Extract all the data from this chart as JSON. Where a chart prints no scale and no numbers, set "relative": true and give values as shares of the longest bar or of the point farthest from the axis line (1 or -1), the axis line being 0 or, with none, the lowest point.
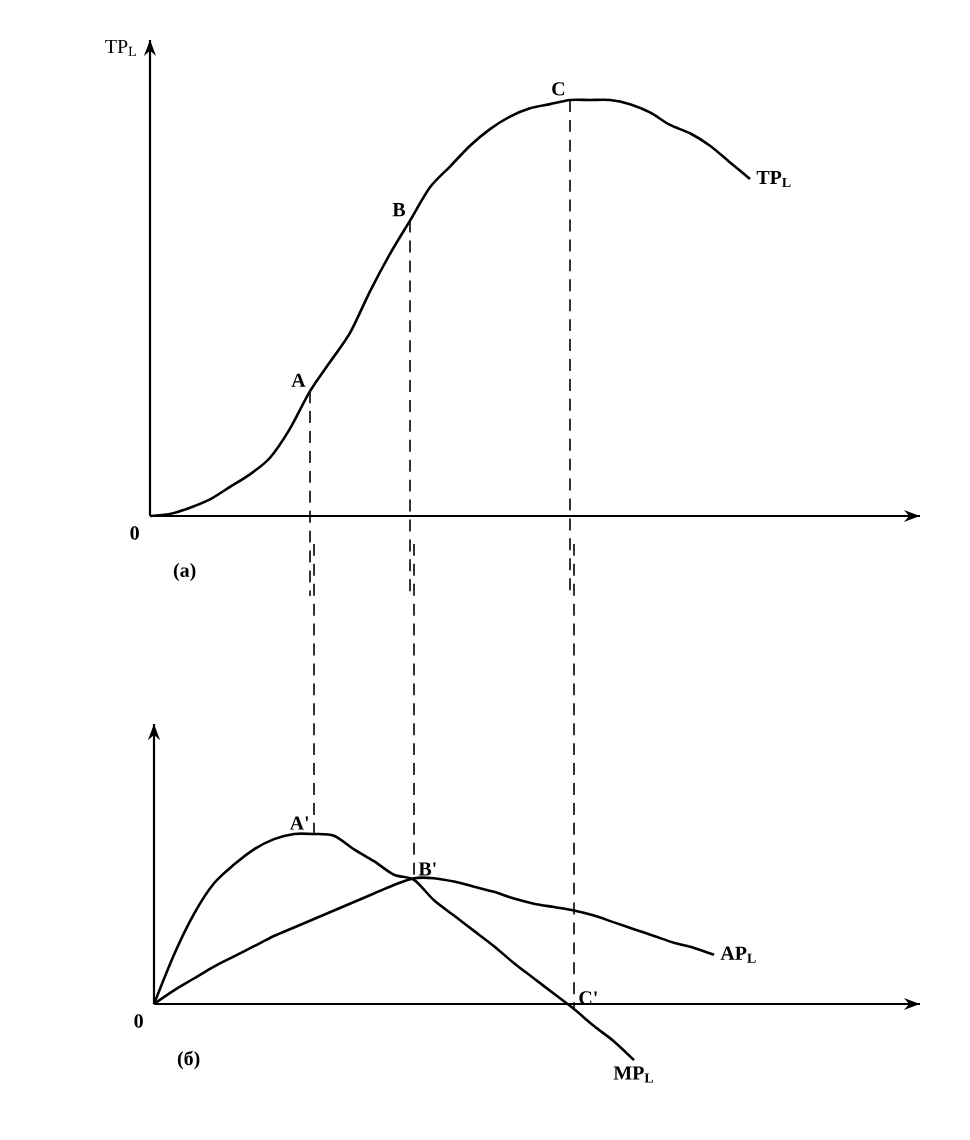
{
  "chart_data": [
    {
      "type": "line",
      "relative": true,
      "legend": false,
      "ylabel": "TP$_{L}$",
      "categories": [
        null,
        null,
        null,
        null,
        null,
        null,
        null,
        null,
        null,
        null,
        null,
        null,
        null,
        null,
        null,
        null,
        null,
        null,
        null,
        null,
        null,
        null,
        null,
        null,
        null,
        null,
        null,
        null,
        null,
        null,
        null
      ],
      "series": [
        {
          "name": "TP$_{L}$",
          "color": "#000000",
          "values": [
            0,
            0.005,
            0.02,
            0.04,
            0.07,
            0.1,
            0.14,
            0.21,
            0.3,
            0.37,
            0.44,
            0.54,
            0.63,
            0.71,
            0.79,
            0.84,
            0.89,
            0.93,
            0.96,
            0.98,
            0.99,
            1.0,
            1.0,
            1.0,
            0.99,
            0.97,
            0.94,
            0.92,
            0.89,
            0.85,
            0.81
          ]
        }
      ],
      "annotations": [
        "0",
        "(a)",
        "A",
        "B",
        "C"
      ]
    },
    {
      "type": "line",
      "relative": true,
      "legend": false,
      "categories": [
        null,
        null,
        null,
        null,
        null,
        null,
        null,
        null,
        null,
        null,
        null,
        null,
        null,
        null,
        null,
        null,
        null,
        null,
        null,
        null,
        null,
        null,
        null,
        null,
        null,
        null,
        null,
        null,
        null,
        null,
        null
      ],
      "series": [
        {
          "name": "MP$_{L}$",
          "color": "#000000",
          "values": [
            0,
            0.29,
            0.53,
            0.71,
            0.82,
            0.91,
            0.97,
            1.0,
            1.0,
            0.99,
            0.91,
            0.84,
            0.76,
            0.73,
            0.61,
            0.52,
            0.43,
            0.34,
            0.24,
            0.15,
            0.06,
            -0.03,
            -0.13,
            -0.22,
            -0.33,
            null,
            null,
            null,
            null,
            null,
            null
          ]
        },
        {
          "name": "AP$_{L}$",
          "color": "#000000",
          "values": [
            0,
            0.08,
            0.15,
            0.22,
            0.28,
            0.34,
            0.4,
            0.45,
            0.5,
            0.55,
            0.6,
            0.65,
            0.7,
            0.74,
            0.74,
            0.72,
            0.69,
            0.66,
            0.62,
            0.59,
            0.57,
            0.55,
            0.52,
            0.48,
            0.44,
            0.4,
            0.36,
            0.33,
            0.29,
            null,
            null
          ]
        }
      ],
      "annotations": [
        "0",
        "(б)",
        "A'",
        "B'",
        "C'"
      ]
    }
  ]
}
